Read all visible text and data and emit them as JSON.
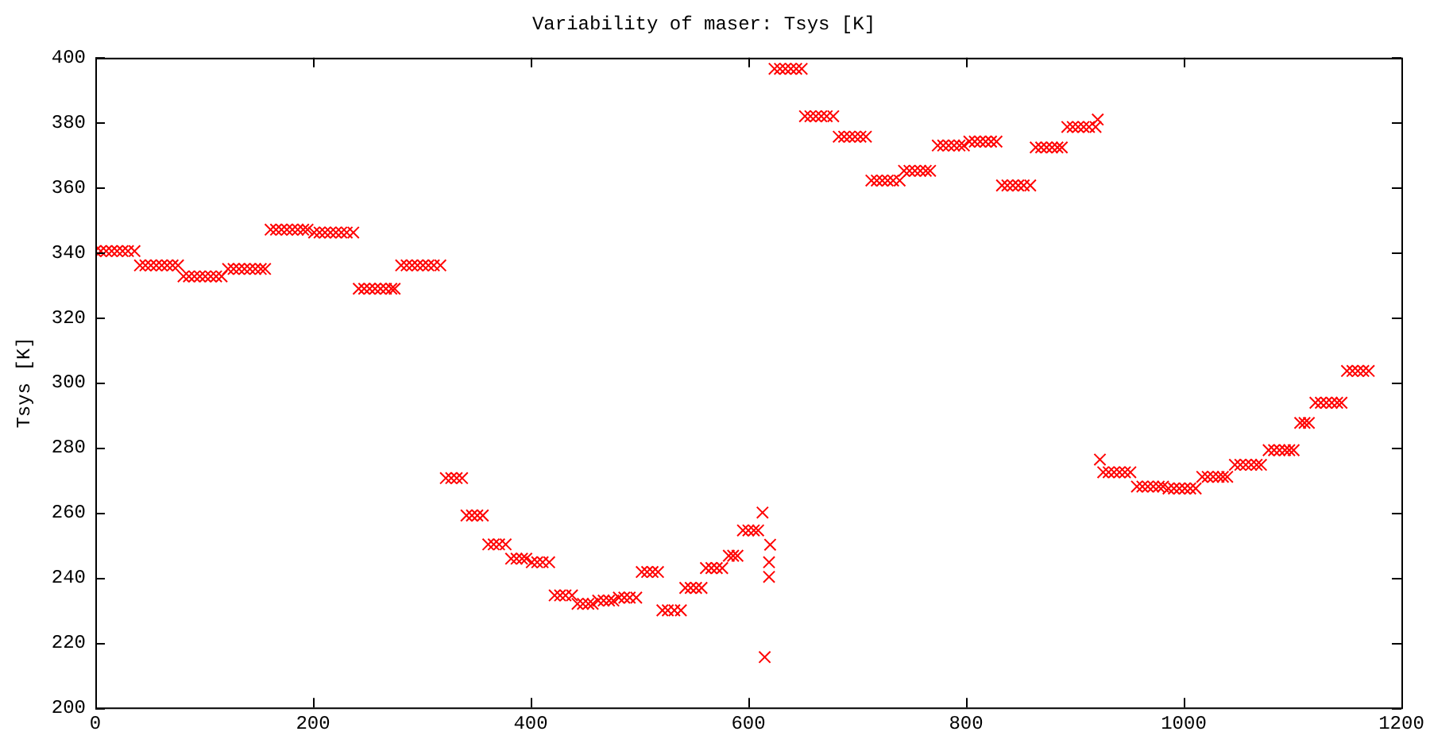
{
  "chart_data": {
    "type": "scatter",
    "title": "Variability of maser: Tsys [K]",
    "ylabel": "Tsys [K]",
    "xlim": [
      0,
      1200
    ],
    "xticks": [
      0,
      200,
      400,
      600,
      800,
      1000,
      1200
    ],
    "ylim": [
      200,
      400
    ],
    "yticks": [
      200,
      220,
      240,
      260,
      280,
      300,
      320,
      340,
      360,
      380,
      400
    ],
    "marker": "cross",
    "legend": false,
    "series": [
      {
        "color": "#ff0000",
        "x": [
          0,
          5,
          10,
          15,
          20,
          25,
          30,
          36,
          41,
          46,
          51,
          56,
          61,
          66,
          71,
          76,
          81,
          86,
          91,
          96,
          101,
          106,
          111,
          116,
          122,
          127,
          132,
          137,
          142,
          147,
          152,
          156,
          161,
          166,
          171,
          176,
          181,
          186,
          191,
          195,
          201,
          206,
          211,
          216,
          221,
          226,
          231,
          237,
          242,
          247,
          252,
          257,
          262,
          267,
          272,
          275,
          281,
          286,
          291,
          296,
          301,
          306,
          311,
          317,
          322,
          327,
          332,
          337,
          341,
          346,
          351,
          356,
          361,
          366,
          371,
          377,
          382,
          387,
          392,
          396,
          401,
          406,
          411,
          417,
          422,
          427,
          432,
          438,
          443,
          448,
          453,
          457,
          462,
          467,
          472,
          476,
          481,
          486,
          491,
          497,
          502,
          507,
          512,
          517,
          521,
          526,
          532,
          538,
          542,
          547,
          552,
          557,
          561,
          566,
          571,
          576,
          582,
          586,
          590,
          595,
          600,
          605,
          609,
          613,
          620,
          619,
          619,
          615,
          624,
          629,
          634,
          639,
          644,
          649,
          652,
          657,
          662,
          667,
          672,
          678,
          683,
          688,
          693,
          698,
          703,
          708,
          713,
          718,
          723,
          728,
          733,
          739,
          743,
          748,
          753,
          758,
          763,
          767,
          774,
          779,
          784,
          789,
          794,
          798,
          803,
          808,
          813,
          818,
          823,
          828,
          833,
          838,
          843,
          848,
          853,
          859,
          864,
          869,
          874,
          879,
          884,
          888,
          893,
          898,
          903,
          908,
          913,
          919,
          921,
          923,
          926,
          931,
          936,
          941,
          946,
          951,
          957,
          962,
          967,
          972,
          977,
          981,
          986,
          991,
          996,
          1001,
          1006,
          1011,
          1017,
          1022,
          1027,
          1032,
          1036,
          1040,
          1047,
          1052,
          1057,
          1062,
          1067,
          1071,
          1078,
          1083,
          1088,
          1093,
          1097,
          1101,
          1107,
          1111,
          1115,
          1121,
          1126,
          1131,
          1136,
          1141,
          1145,
          1150,
          1155,
          1160,
          1165,
          1170
        ],
        "values": [
          340.5,
          340.5,
          340.5,
          340.5,
          340.5,
          340.5,
          340.5,
          340.5,
          336.1,
          336.1,
          336.1,
          336.1,
          336.1,
          336.1,
          336.1,
          336.1,
          332.7,
          332.7,
          332.7,
          332.7,
          332.7,
          332.7,
          332.7,
          332.7,
          335,
          335,
          335,
          335,
          335,
          335,
          335,
          335,
          347.1,
          347.1,
          347.1,
          347.1,
          347.1,
          347.1,
          347.1,
          347.1,
          346.2,
          346.2,
          346.2,
          346.2,
          346.2,
          346.2,
          346.2,
          346.2,
          328.9,
          328.9,
          328.9,
          328.9,
          328.9,
          328.9,
          328.9,
          328.9,
          336.1,
          336.1,
          336.1,
          336.1,
          336.1,
          336.1,
          336.1,
          336.1,
          270.6,
          270.6,
          270.6,
          270.6,
          259.1,
          259.1,
          259.1,
          259.1,
          250.2,
          250.2,
          250.2,
          250.2,
          245.8,
          245.8,
          245.8,
          245.8,
          244.7,
          244.7,
          244.7,
          244.7,
          234.5,
          234.5,
          234.5,
          234.5,
          231.9,
          231.9,
          231.9,
          231.9,
          232.9,
          232.9,
          232.9,
          232.9,
          233.8,
          233.8,
          233.8,
          233.8,
          241.7,
          241.7,
          241.7,
          241.7,
          229.9,
          229.9,
          229.9,
          229.9,
          236.8,
          236.8,
          236.8,
          236.8,
          242.9,
          242.9,
          242.9,
          242.9,
          246.7,
          246.7,
          246.7,
          254.5,
          254.5,
          254.5,
          254.5,
          260,
          250.1,
          244.7,
          240.2,
          215.5,
          396.6,
          396.6,
          396.6,
          396.6,
          396.6,
          396.6,
          382,
          382,
          382,
          382,
          382,
          382,
          375.7,
          375.7,
          375.7,
          375.7,
          375.7,
          375.7,
          362.2,
          362.2,
          362.2,
          362.2,
          362.2,
          362.2,
          365.2,
          365.2,
          365.2,
          365.2,
          365.2,
          365.2,
          373,
          373,
          373,
          373,
          373,
          373,
          374.2,
          374.2,
          374.2,
          374.2,
          374.2,
          374.2,
          360.7,
          360.7,
          360.7,
          360.7,
          360.7,
          360.7,
          372.4,
          372.4,
          372.4,
          372.4,
          372.4,
          372.4,
          378.7,
          378.7,
          378.7,
          378.7,
          378.7,
          378.7,
          381,
          276.3,
          272.4,
          272.4,
          272.4,
          272.4,
          272.4,
          272.4,
          268,
          268,
          268,
          268,
          268,
          268,
          267.4,
          267.4,
          267.4,
          267.4,
          267.4,
          267.4,
          271,
          271,
          271,
          271,
          271,
          271,
          274.7,
          274.7,
          274.7,
          274.7,
          274.7,
          274.7,
          279.2,
          279.2,
          279.2,
          279.2,
          279.2,
          279.2,
          287.6,
          287.6,
          287.6,
          293.8,
          293.8,
          293.8,
          293.8,
          293.8,
          293.8,
          303.6,
          303.6,
          303.6,
          303.6,
          303.6
        ]
      }
    ]
  }
}
